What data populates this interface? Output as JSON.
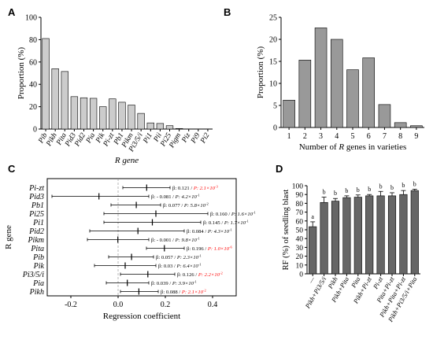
{
  "panels": {
    "a": "A",
    "b": "B",
    "c": "C",
    "d": "D"
  },
  "chart_data": [
    {
      "id": "A",
      "type": "bar",
      "ylabel": "Proportion (%)",
      "xlabel": "R gene",
      "ylim": [
        0,
        100
      ],
      "yticks": [
        0,
        20,
        40,
        60,
        80,
        100
      ],
      "categories": [
        "Pib",
        "Pikh",
        "Pita",
        "Pid3",
        "Pid2",
        "Pia",
        "Pik",
        "Pi-zt",
        "Pb1",
        "Pikm",
        "Pi3/5/i",
        "Pi1",
        "Pii",
        "Pi25",
        "Pigm",
        "Piz",
        "Pi9",
        "Pi2"
      ],
      "values": [
        81,
        54,
        51.5,
        29,
        28,
        27.5,
        20,
        27,
        24,
        21.5,
        14,
        5.5,
        5,
        3,
        0.5,
        0,
        0,
        0
      ],
      "color": "#cccccc",
      "grid": false
    },
    {
      "id": "B",
      "type": "bar",
      "ylabel": "Proportion (%)",
      "xlabel": "Number of R genes in varieties",
      "ylim": [
        0,
        25
      ],
      "yticks": [
        0,
        5,
        10,
        15,
        20,
        25
      ],
      "categories": [
        "1",
        "2",
        "3",
        "4",
        "5",
        "6",
        "7",
        "8",
        "9"
      ],
      "values": [
        6.2,
        15.3,
        22.6,
        20,
        13.1,
        15.8,
        5.2,
        1.1,
        0.4
      ],
      "color": "#999999",
      "grid": false
    },
    {
      "id": "C",
      "type": "forest",
      "ylabel": "R gene",
      "xlabel": "Regression coefficient",
      "xlim": [
        -0.3,
        0.5
      ],
      "xticks": [
        -0.2,
        0,
        0.2,
        0.4
      ],
      "xticklabels": [
        "-0.2",
        "0.0",
        "0.2",
        "0.4"
      ],
      "rows": [
        {
          "gene": "Pi-zt",
          "beta": 0.121,
          "lo": 0.02,
          "hi": 0.22,
          "beta_label": "β: 0.121 / ",
          "p_label": "P: 2.1×10",
          "p_exp": "-3",
          "significant": true
        },
        {
          "gene": "Pid3",
          "beta": -0.081,
          "lo": -0.28,
          "hi": 0.13,
          "beta_label": "β: - 0.081 / ",
          "p_label": "P: 4.2×10",
          "p_exp": "-1",
          "significant": false
        },
        {
          "gene": "Pb1",
          "beta": 0.077,
          "lo": -0.03,
          "hi": 0.18,
          "beta_label": "β: 0.077 / ",
          "p_label": "P: 5.8×10",
          "p_exp": "-2",
          "significant": false
        },
        {
          "gene": "Pi25",
          "beta": 0.16,
          "lo": -0.06,
          "hi": 0.38,
          "beta_label": "β: 0.160 / ",
          "p_label": "P: 1.6×10",
          "p_exp": "-1",
          "significant": false
        },
        {
          "gene": "Pi1",
          "beta": 0.145,
          "lo": -0.06,
          "hi": 0.35,
          "beta_label": "β: 0.145 / ",
          "p_label": "P: 1.7×10",
          "p_exp": "-1",
          "significant": false
        },
        {
          "gene": "Pid2",
          "beta": 0.084,
          "lo": -0.12,
          "hi": 0.28,
          "beta_label": "β: 0.084 / ",
          "p_label": "P: 4.3×10",
          "p_exp": "-1",
          "significant": false
        },
        {
          "gene": "Pikm",
          "beta": -0.001,
          "lo": -0.13,
          "hi": 0.13,
          "beta_label": "β: - 0.001 / ",
          "p_label": "P: 9.8×10",
          "p_exp": "-1",
          "significant": false
        },
        {
          "gene": "Pita",
          "beta": 0.196,
          "lo": 0.12,
          "hi": 0.28,
          "beta_label": "β: 0.196 / ",
          "p_label": "P: 1.0×10",
          "p_exp": "-6",
          "significant": true
        },
        {
          "gene": "Pib",
          "beta": 0.057,
          "lo": -0.04,
          "hi": 0.15,
          "beta_label": "β: 0.057 / ",
          "p_label": "P: 2.3×10",
          "p_exp": "-1",
          "significant": false
        },
        {
          "gene": "Pik",
          "beta": 0.03,
          "lo": -0.1,
          "hi": 0.16,
          "beta_label": "β: 0.03 / ",
          "p_label": "P: 6.4×10",
          "p_exp": "-1",
          "significant": false
        },
        {
          "gene": "Pi3/5/i",
          "beta": 0.126,
          "lo": 0.01,
          "hi": 0.24,
          "beta_label": "β: 0.126 / ",
          "p_label": "P: 2.2×10",
          "p_exp": "-2",
          "significant": true
        },
        {
          "gene": "Pia",
          "beta": 0.039,
          "lo": -0.05,
          "hi": 0.13,
          "beta_label": "β: 0.039 / ",
          "p_label": "P: 3.9×10",
          "p_exp": "-1",
          "significant": false
        },
        {
          "gene": "Pikh",
          "beta": 0.088,
          "lo": 0.01,
          "hi": 0.17,
          "beta_label": "β: 0.088 / ",
          "p_label": "P: 2.1×10",
          "p_exp": "-2",
          "significant": true
        }
      ],
      "significant_color": "#ff0000"
    },
    {
      "id": "D",
      "type": "bar",
      "ylabel": "RF (%) of seedling blast",
      "ylim": [
        0,
        100
      ],
      "yticks": [
        0,
        10,
        20,
        30,
        40,
        50,
        60,
        70,
        80,
        90,
        100
      ],
      "categories": [
        "—",
        "Pikh+Pi3/5/i",
        "Pikh",
        "Pikh+Pita",
        "Pita",
        "Pikh+Pi-zt",
        "Pi-zt",
        "Pita+Pi-zt",
        "Pikh+Pita+Pi-zt",
        "Pikh+Pi3/5/i+Pita"
      ],
      "values": [
        53.5,
        81,
        82.5,
        86.5,
        87,
        88.5,
        88.5,
        88.5,
        90,
        94.5
      ],
      "errors": [
        5.5,
        6,
        3,
        2,
        2.5,
        1.5,
        5,
        3.5,
        4.5,
        1.5
      ],
      "letters": [
        "a",
        "b",
        "b",
        "b",
        "b",
        "b",
        "b",
        "b",
        "b",
        "b"
      ],
      "color": "#666666",
      "grid": false
    }
  ]
}
